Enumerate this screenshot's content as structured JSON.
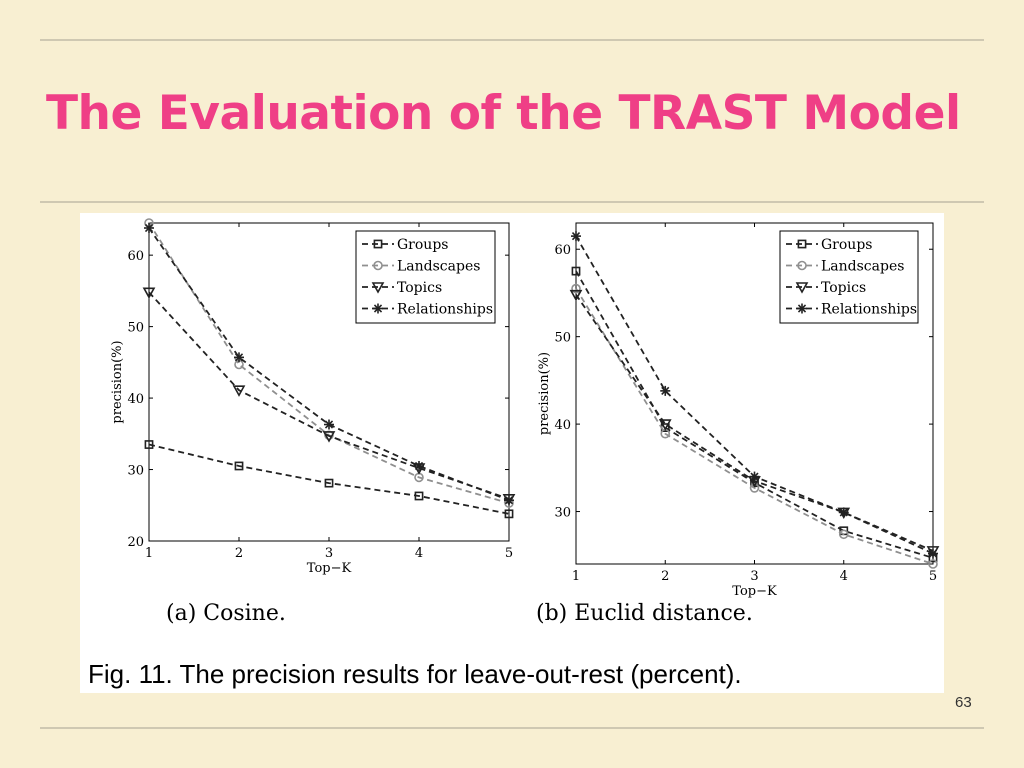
{
  "slide": {
    "title": "The Evaluation of the TRAST Model",
    "page_number": "63"
  },
  "figure": {
    "caption": "Fig. 11. The precision results for leave-out-rest (percent).",
    "subcaption_a": "(a) Cosine.",
    "subcaption_b": "(b) Euclid distance."
  },
  "chart_data": [
    {
      "type": "line",
      "xlabel": "Top−K",
      "ylabel": "precision(%)",
      "x": [
        1,
        2,
        3,
        4,
        5
      ],
      "xticks": [
        "1",
        "2",
        "3",
        "4",
        "5"
      ],
      "yticks": [
        20,
        30,
        40,
        50,
        60
      ],
      "xlim": [
        1,
        5
      ],
      "ylim": [
        20,
        64.5
      ],
      "legend_position": "top-right",
      "grid": false,
      "series": [
        {
          "name": "Groups",
          "values": [
            33.5,
            30.5,
            28.1,
            26.3,
            23.8
          ],
          "color": "#222222",
          "marker": "square"
        },
        {
          "name": "Landscapes",
          "values": [
            64.5,
            44.7,
            34.8,
            28.9,
            25.3
          ],
          "color": "#8f8f8f",
          "marker": "circle"
        },
        {
          "name": "Topics",
          "values": [
            54.8,
            41.1,
            34.7,
            30.2,
            25.9
          ],
          "color": "#222222",
          "marker": "triangle-down"
        },
        {
          "name": "Relationships",
          "values": [
            63.8,
            45.7,
            36.3,
            30.5,
            25.7
          ],
          "color": "#222222",
          "marker": "star"
        }
      ]
    },
    {
      "type": "line",
      "xlabel": "Top−K",
      "ylabel": "precision(%)",
      "x": [
        1,
        2,
        3,
        4,
        5
      ],
      "xticks": [
        "1",
        "2",
        "3",
        "4",
        "5"
      ],
      "yticks": [
        30,
        40,
        50,
        60
      ],
      "xlim": [
        1,
        5
      ],
      "ylim": [
        24,
        63
      ],
      "legend_position": "top-right",
      "grid": false,
      "series": [
        {
          "name": "Groups",
          "values": [
            57.5,
            39.6,
            33.3,
            27.8,
            24.7
          ],
          "color": "#222222",
          "marker": "square"
        },
        {
          "name": "Landscapes",
          "values": [
            55.5,
            38.9,
            32.7,
            27.4,
            24.0
          ],
          "color": "#8f8f8f",
          "marker": "circle"
        },
        {
          "name": "Topics",
          "values": [
            54.8,
            40.0,
            33.5,
            29.9,
            25.5
          ],
          "color": "#222222",
          "marker": "triangle-down"
        },
        {
          "name": "Relationships",
          "values": [
            61.5,
            43.8,
            34.0,
            29.9,
            25.2
          ],
          "color": "#222222",
          "marker": "star"
        }
      ]
    }
  ]
}
